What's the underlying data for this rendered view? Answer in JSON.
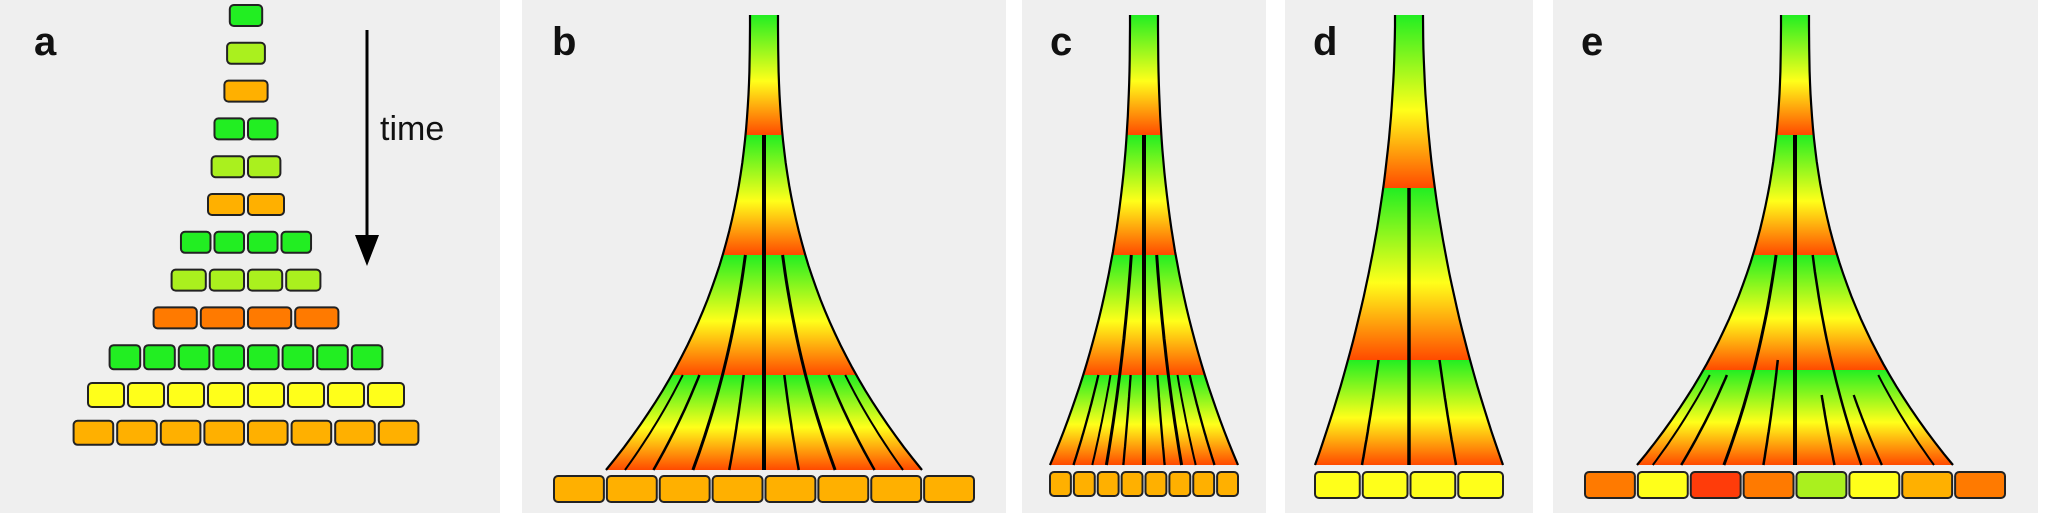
{
  "panels": [
    {
      "id": "a",
      "label": "a"
    },
    {
      "id": "b",
      "label": "b"
    },
    {
      "id": "c",
      "label": "c"
    },
    {
      "id": "d",
      "label": "d"
    },
    {
      "id": "e",
      "label": "e"
    }
  ],
  "time_label": "time",
  "colors": {
    "green": "#22ee22",
    "light_green": "#aaf01e",
    "yellow": "#ffff1a",
    "orange": "#ffb000",
    "dark_orange": "#ff7a00",
    "red_orange": "#ff3c0a",
    "background": "#efefef"
  },
  "panel_a_rows": [
    [
      "green"
    ],
    [
      "light_green"
    ],
    [
      "orange"
    ],
    [
      "green",
      "green"
    ],
    [
      "light_green",
      "light_green"
    ],
    [
      "orange",
      "orange"
    ],
    [
      "green",
      "green",
      "green",
      "green"
    ],
    [
      "light_green",
      "light_green",
      "light_green",
      "light_green"
    ],
    [
      "dark_orange",
      "dark_orange",
      "dark_orange",
      "dark_orange"
    ],
    [
      "green",
      "green",
      "green",
      "green",
      "green",
      "green",
      "green",
      "green"
    ],
    [
      "yellow",
      "yellow",
      "yellow",
      "yellow",
      "yellow",
      "yellow",
      "yellow",
      "yellow"
    ],
    [
      "orange",
      "orange",
      "orange",
      "orange",
      "orange",
      "orange",
      "orange",
      "orange"
    ]
  ],
  "bottom_rows": {
    "b": [
      "orange",
      "orange",
      "orange",
      "orange",
      "orange",
      "orange",
      "orange",
      "orange"
    ],
    "c": [
      "orange",
      "orange",
      "orange",
      "orange",
      "orange",
      "orange",
      "orange",
      "orange"
    ],
    "d": [
      "yellow",
      "yellow",
      "yellow",
      "yellow"
    ],
    "e": [
      "dark_orange",
      "yellow",
      "red_orange",
      "dark_orange",
      "light_green",
      "yellow",
      "orange",
      "dark_orange"
    ]
  }
}
